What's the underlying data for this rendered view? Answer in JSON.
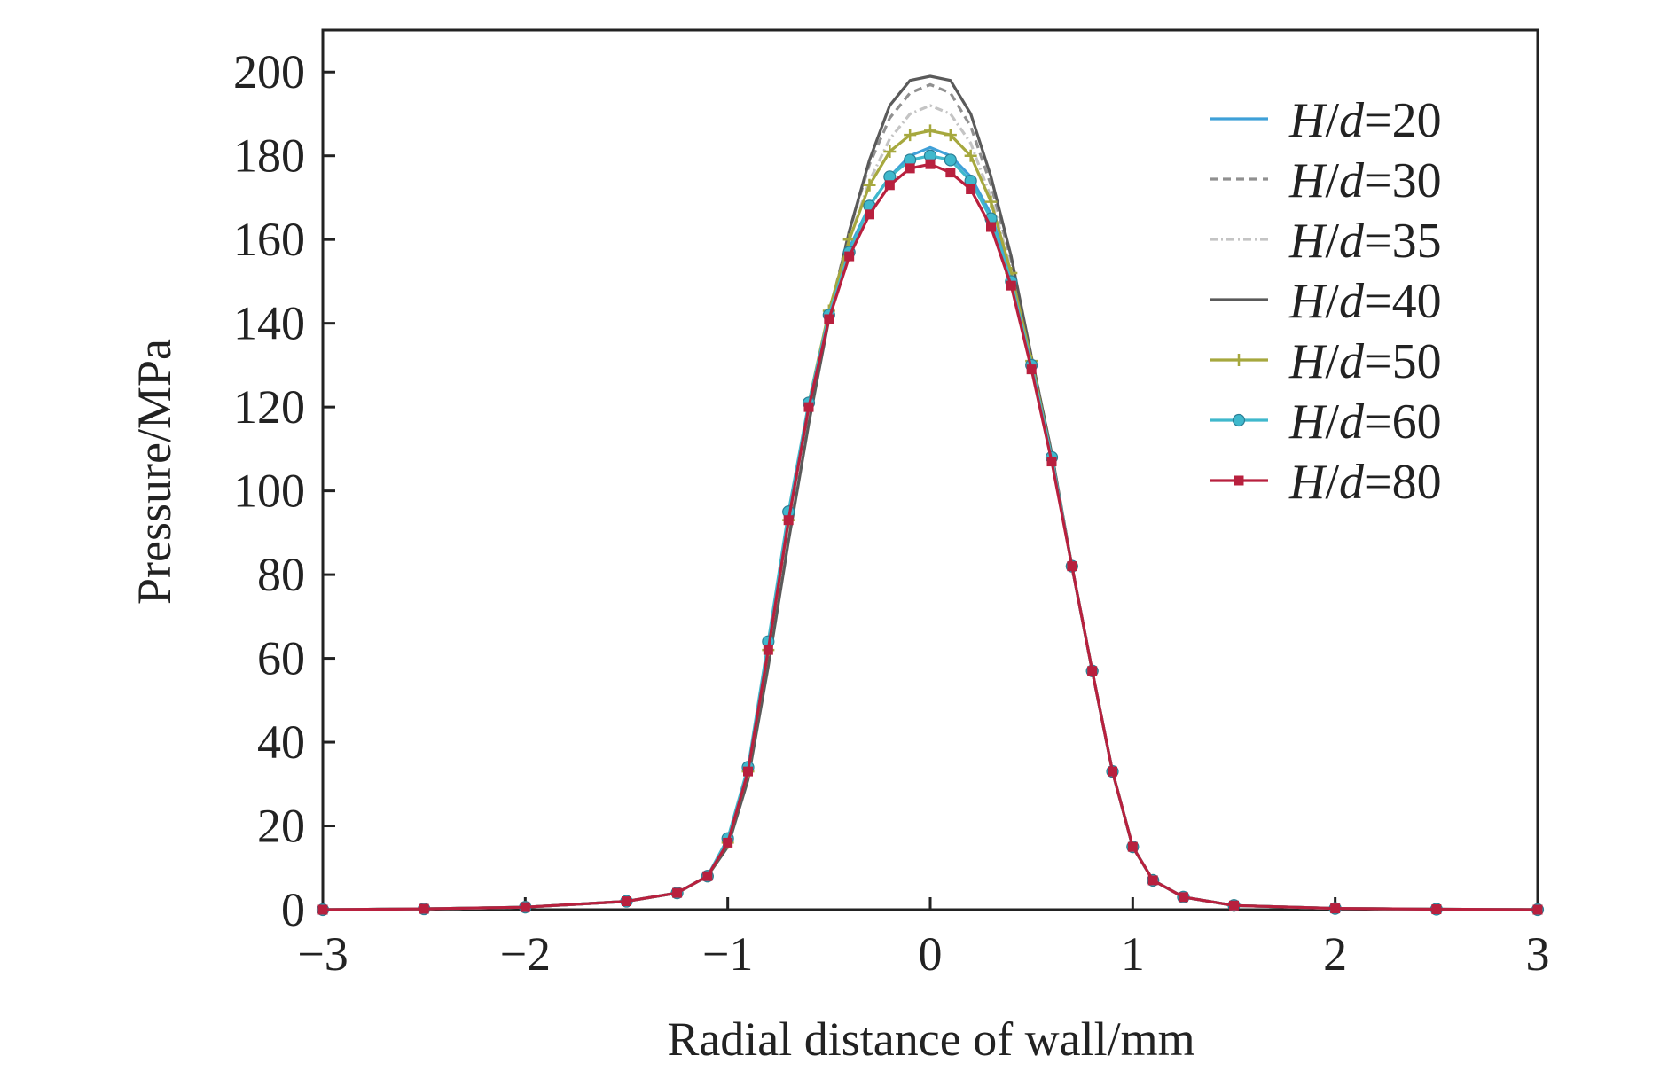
{
  "chart_data": {
    "type": "line",
    "xlabel": "Radial distance of wall/mm",
    "ylabel": "Pressure/MPa",
    "xlim": [
      -3,
      3
    ],
    "ylim": [
      0,
      210
    ],
    "x_ticks": [
      -3,
      -2,
      -1,
      0,
      1,
      2,
      3
    ],
    "x_tick_labels": [
      "−3",
      "−2",
      "−1",
      "0",
      "1",
      "2",
      "3"
    ],
    "y_ticks": [
      0,
      20,
      40,
      60,
      80,
      100,
      120,
      140,
      160,
      180,
      200
    ],
    "y_tick_labels": [
      "0",
      "20",
      "40",
      "60",
      "80",
      "100",
      "120",
      "140",
      "160",
      "180",
      "200"
    ],
    "grid": false,
    "legend_position": "top-right",
    "x": [
      -3.0,
      -2.5,
      -2.0,
      -1.5,
      -1.25,
      -1.1,
      -1.0,
      -0.9,
      -0.8,
      -0.7,
      -0.6,
      -0.5,
      -0.4,
      -0.3,
      -0.2,
      -0.1,
      0.0,
      0.1,
      0.2,
      0.3,
      0.4,
      0.5,
      0.6,
      0.7,
      0.8,
      0.9,
      1.0,
      1.1,
      1.25,
      1.5,
      2.0,
      2.5,
      3.0
    ],
    "series": [
      {
        "name": "H/d=20",
        "prefix": "H",
        "mid": "/",
        "suffix": "d",
        "num": "=20",
        "color": "#3fa0d8",
        "dash": "",
        "marker": "none",
        "values": [
          0,
          0.2,
          0.6,
          2,
          4,
          8,
          16,
          33,
          62,
          93,
          120,
          142,
          158,
          168,
          175,
          180,
          182,
          180,
          175,
          166,
          151,
          130,
          108,
          82,
          57,
          33,
          15,
          7,
          3,
          1,
          0.3,
          0.1,
          0
        ]
      },
      {
        "name": "H/d=30",
        "prefix": "H",
        "mid": "/",
        "suffix": "d",
        "num": "=30",
        "color": "#909090",
        "dash": "9,6",
        "marker": "none",
        "values": [
          0,
          0.2,
          0.6,
          2,
          4,
          8,
          16,
          32,
          60,
          90,
          118,
          142,
          162,
          178,
          189,
          195,
          197,
          195,
          187,
          173,
          155,
          132,
          109,
          82,
          57,
          33,
          15,
          7,
          3,
          1,
          0.3,
          0.1,
          0
        ]
      },
      {
        "name": "H/d=35",
        "prefix": "H",
        "mid": "/",
        "suffix": "d",
        "num": "=35",
        "color": "#c4c4c4",
        "dash": "9,4,2,4",
        "marker": "none",
        "values": [
          0,
          0.2,
          0.6,
          2,
          4,
          8,
          16,
          32,
          61,
          91,
          119,
          142,
          160,
          174,
          184,
          190,
          192,
          190,
          183,
          170,
          153,
          131,
          108,
          82,
          57,
          33,
          15,
          7,
          3,
          1,
          0.3,
          0.1,
          0
        ]
      },
      {
        "name": "H/d=40",
        "prefix": "H",
        "mid": "/",
        "suffix": "d",
        "num": "=40",
        "color": "#5a5a5a",
        "dash": "",
        "marker": "none",
        "values": [
          0,
          0.2,
          0.6,
          2,
          4,
          8,
          15,
          31,
          58,
          88,
          116,
          141,
          162,
          179,
          192,
          198,
          199,
          198,
          190,
          175,
          156,
          132,
          109,
          82,
          57,
          33,
          15,
          7,
          3,
          1,
          0.3,
          0.1,
          0
        ]
      },
      {
        "name": "H/d=50",
        "prefix": "H",
        "mid": "/",
        "suffix": "d",
        "num": "=50",
        "color": "#a6a83e",
        "dash": "",
        "marker": "plus",
        "values": [
          0,
          0.2,
          0.6,
          2,
          4,
          8,
          16,
          33,
          62,
          93,
          121,
          143,
          160,
          173,
          181,
          185,
          186,
          185,
          180,
          169,
          152,
          131,
          108,
          82,
          57,
          33,
          15,
          7,
          3,
          1,
          0.3,
          0.1,
          0
        ]
      },
      {
        "name": "H/d=60",
        "prefix": "H",
        "mid": "/",
        "suffix": "d",
        "num": "=60",
        "color": "#3fb8cc",
        "dash": "",
        "marker": "circle",
        "values": [
          0,
          0.2,
          0.6,
          2,
          4,
          8,
          17,
          34,
          64,
          95,
          121,
          142,
          157,
          168,
          175,
          179,
          180,
          179,
          174,
          165,
          150,
          130,
          108,
          82,
          57,
          33,
          15,
          7,
          3,
          1,
          0.3,
          0.1,
          0
        ]
      },
      {
        "name": "H/d=80",
        "prefix": "H",
        "mid": "/",
        "suffix": "d",
        "num": "=80",
        "color": "#b8203e",
        "dash": "",
        "marker": "square",
        "values": [
          0,
          0.2,
          0.6,
          2,
          4,
          8,
          16,
          33,
          62,
          93,
          120,
          141,
          156,
          166,
          173,
          177,
          178,
          176,
          172,
          163,
          149,
          129,
          107,
          82,
          57,
          33,
          15,
          7,
          3,
          1,
          0.3,
          0.1,
          0
        ]
      }
    ]
  }
}
